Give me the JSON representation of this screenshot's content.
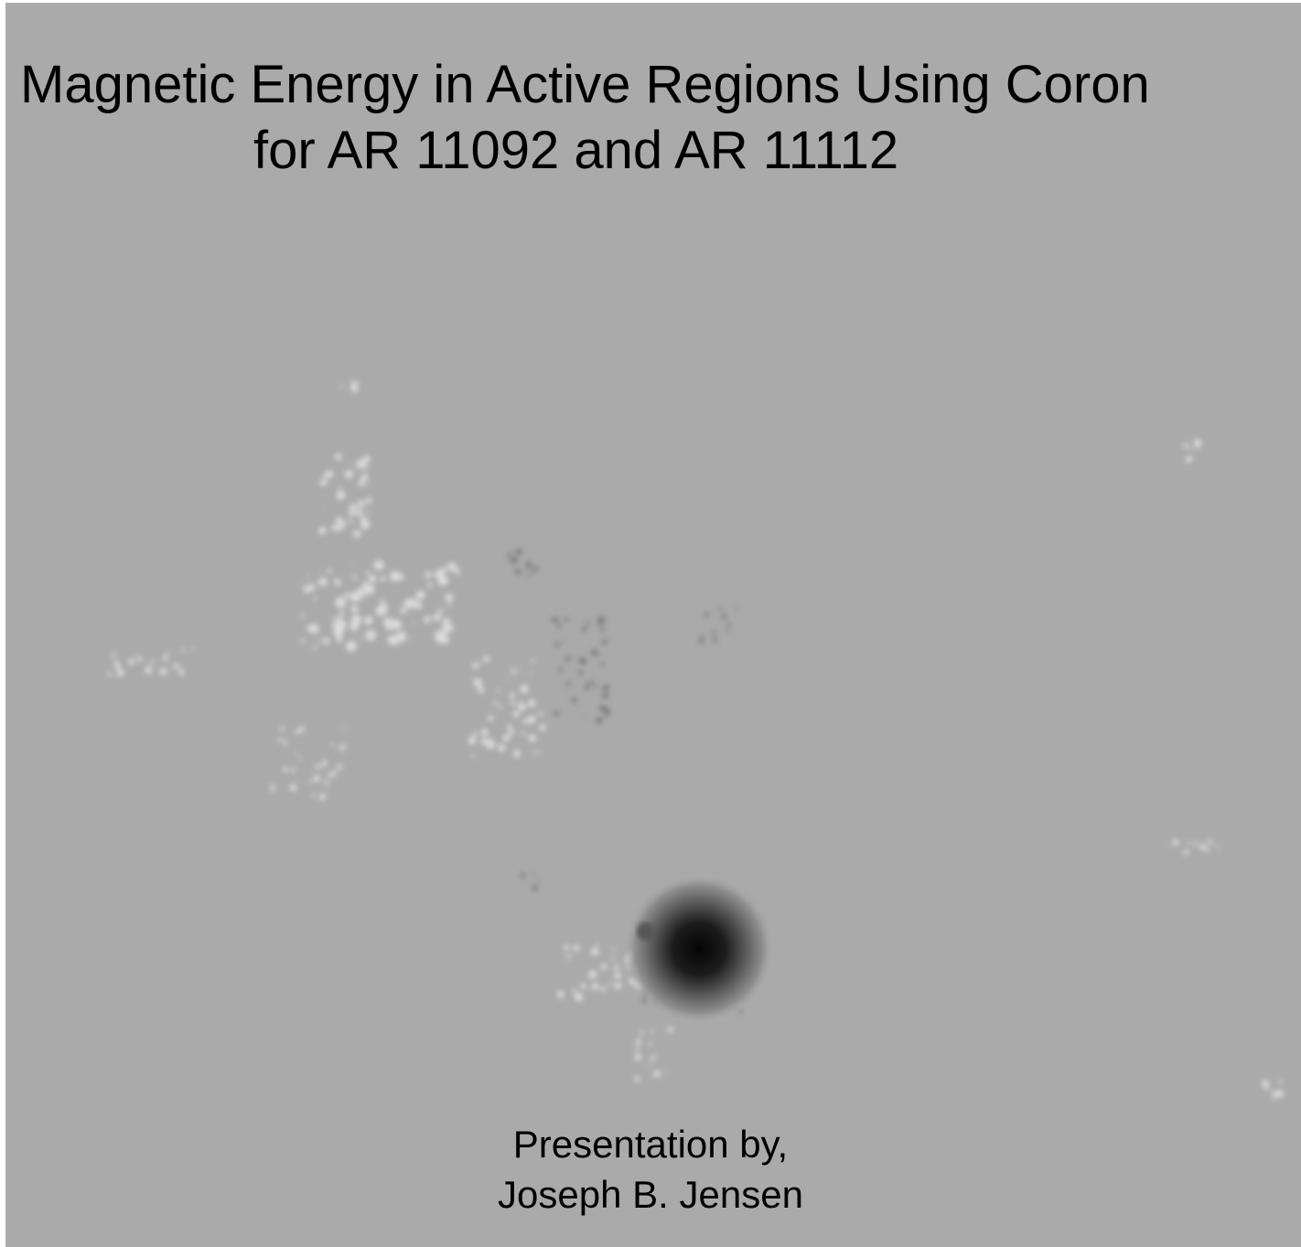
{
  "slide": {
    "title_lines": [
      "Magnetic Energy in Active Regions Using Coron",
      "for AR 11092 and AR 11112"
    ],
    "byline_lines": [
      "Presentation by,",
      "Joseph B. Jensen"
    ]
  }
}
